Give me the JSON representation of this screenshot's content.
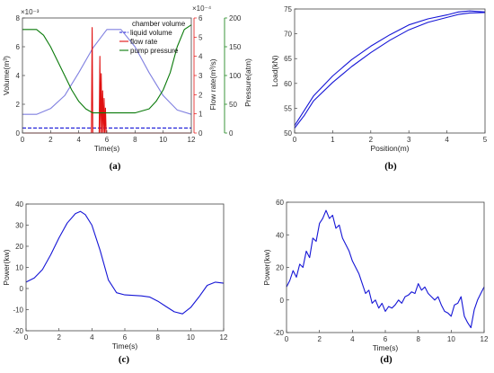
{
  "colors": {
    "blue": "#1515d6",
    "light_blue": "#8080e0",
    "red": "#e01010",
    "green": "#0a7a0a",
    "axis": "#444444"
  },
  "chart_data": [
    {
      "id": "a",
      "type": "line",
      "caption": "(a)",
      "xlabel": "Time(s)",
      "xticks": [
        "0",
        "2",
        "4",
        "6",
        "8",
        "10",
        "12"
      ],
      "xlim": [
        0,
        12
      ],
      "axes": {
        "volume": {
          "label": "Volume(m³)",
          "exponent": "×10⁻³",
          "ticks": [
            "0",
            "2",
            "4",
            "6",
            "8"
          ],
          "lim": [
            0,
            8
          ],
          "color": "#1515d6"
        },
        "flow": {
          "label": "Flow rate(m³/s)",
          "exponent": "×10⁻⁴",
          "ticks": [
            "0",
            "1",
            "2",
            "3",
            "4",
            "5",
            "6"
          ],
          "lim": [
            0,
            6
          ],
          "color": "#e01010"
        },
        "pressure": {
          "label": "Pressure(atm)",
          "ticks": [
            "0",
            "50",
            "100",
            "150",
            "200"
          ],
          "lim": [
            0,
            200
          ],
          "color": "#0a7a0a"
        }
      },
      "legend": [
        "chamber volume",
        "liquid volume",
        "flow rate",
        "pump pressure"
      ],
      "series": [
        {
          "name": "chamber volume",
          "axis": "volume",
          "color": "#8080e0",
          "x": [
            0,
            1,
            2,
            3,
            4,
            5,
            6,
            7,
            8,
            9,
            10,
            11,
            12
          ],
          "y": [
            1.3,
            1.3,
            1.7,
            2.6,
            4.2,
            5.9,
            7.2,
            7.2,
            6.0,
            4.2,
            2.6,
            1.6,
            1.3
          ]
        },
        {
          "name": "liquid volume",
          "axis": "volume",
          "color": "#1515d6",
          "dashed": true,
          "x": [
            0,
            12
          ],
          "y": [
            0.35,
            0.35
          ]
        },
        {
          "name": "flow rate",
          "axis": "flow",
          "color": "#e01010",
          "x": [
            0,
            4.9,
            4.95,
            5.0,
            5.05,
            5.1,
            5.45,
            5.5,
            5.55,
            5.6,
            5.65,
            5.7,
            5.75,
            5.8,
            5.85,
            5.9,
            5.95,
            6.0,
            12
          ],
          "y": [
            0,
            0,
            5.5,
            0,
            0,
            0,
            0,
            4.0,
            0,
            3.1,
            0,
            2.2,
            0,
            1.8,
            0,
            1.3,
            0,
            0,
            0
          ]
        },
        {
          "name": "pump pressure",
          "axis": "pressure",
          "color": "#0a7a0a",
          "x": [
            0,
            1,
            1.5,
            2,
            3,
            3.5,
            4,
            4.5,
            5,
            6,
            7,
            8,
            9,
            9.5,
            10,
            10.5,
            11,
            11.5,
            12
          ],
          "y": [
            180,
            180,
            170,
            150,
            100,
            75,
            55,
            42,
            35,
            35,
            35,
            35,
            42,
            55,
            75,
            105,
            150,
            180,
            188
          ]
        }
      ]
    },
    {
      "id": "b",
      "type": "line",
      "caption": "(b)",
      "xlabel": "Position(m)",
      "ylabel": "Load(kN)",
      "xticks": [
        "0",
        "1",
        "2",
        "3",
        "4",
        "5"
      ],
      "yticks": [
        "50",
        "55",
        "60",
        "65",
        "70",
        "75"
      ],
      "xlim": [
        0,
        5
      ],
      "ylim": [
        50,
        75
      ],
      "series": [
        {
          "color": "#1515d6",
          "x": [
            0,
            0.25,
            0.5,
            1,
            1.5,
            2,
            2.5,
            3,
            3.5,
            4,
            4.3,
            4.6,
            5
          ],
          "y": [
            51.5,
            54.5,
            57.5,
            61.5,
            64.8,
            67.5,
            69.8,
            71.8,
            73.0,
            73.8,
            74.4,
            74.6,
            74.4
          ]
        },
        {
          "color": "#1515d6",
          "x": [
            0,
            0.25,
            0.5,
            1,
            1.5,
            2,
            2.5,
            3,
            3.5,
            4,
            4.3,
            4.6,
            5
          ],
          "y": [
            51.0,
            53.5,
            56.5,
            60.2,
            63.4,
            66.2,
            68.7,
            70.8,
            72.3,
            73.3,
            73.9,
            74.2,
            74.3
          ]
        }
      ]
    },
    {
      "id": "c",
      "type": "line",
      "caption": "(c)",
      "xlabel": "Time(s)",
      "ylabel": "Power(kw)",
      "xticks": [
        "0",
        "2",
        "4",
        "6",
        "8",
        "10",
        "12"
      ],
      "yticks": [
        "-20",
        "-10",
        "0",
        "10",
        "20",
        "30",
        "40"
      ],
      "xlim": [
        0,
        12
      ],
      "ylim": [
        -20,
        40
      ],
      "series": [
        {
          "color": "#1515d6",
          "x": [
            0,
            0.5,
            1,
            1.5,
            2,
            2.5,
            3,
            3.3,
            3.6,
            4,
            4.5,
            5,
            5.5,
            6,
            7,
            7.5,
            8,
            8.5,
            9,
            9.5,
            10,
            10.5,
            11,
            11.5,
            12
          ],
          "y": [
            3,
            5,
            9,
            16,
            24,
            31,
            35.5,
            36.5,
            35,
            30,
            18,
            4,
            -2,
            -3,
            -3.5,
            -4,
            -6,
            -8.5,
            -11,
            -12,
            -9,
            -4,
            1.5,
            3,
            2.5
          ]
        }
      ]
    },
    {
      "id": "d",
      "type": "line",
      "caption": "(d)",
      "xlabel": "Time(s)",
      "ylabel": "Power(kw)",
      "xticks": [
        "0",
        "2",
        "4",
        "6",
        "8",
        "10",
        "12"
      ],
      "yticks": [
        "-20",
        "0",
        "20",
        "40",
        "60"
      ],
      "xlim": [
        0,
        12
      ],
      "ylim": [
        -20,
        60
      ],
      "series": [
        {
          "color": "#1515d6",
          "x": [
            0,
            0.2,
            0.4,
            0.6,
            0.8,
            1.0,
            1.2,
            1.4,
            1.6,
            1.8,
            2.0,
            2.2,
            2.4,
            2.6,
            2.8,
            3.0,
            3.2,
            3.4,
            3.6,
            3.8,
            4.0,
            4.2,
            4.4,
            4.6,
            4.8,
            5.0,
            5.2,
            5.4,
            5.6,
            5.8,
            6.0,
            6.2,
            6.4,
            6.6,
            6.8,
            7.0,
            7.2,
            7.4,
            7.6,
            7.8,
            8.0,
            8.2,
            8.4,
            8.6,
            8.8,
            9.0,
            9.2,
            9.4,
            9.6,
            9.8,
            10.0,
            10.2,
            10.4,
            10.6,
            10.8,
            11.0,
            11.2,
            11.4,
            11.6,
            11.8,
            12.0
          ],
          "y": [
            8,
            12,
            18,
            14,
            22,
            20,
            30,
            26,
            38,
            36,
            47,
            50,
            55,
            50,
            52,
            44,
            46,
            38,
            34,
            30,
            24,
            20,
            16,
            10,
            4,
            6,
            -2,
            0,
            -5,
            -2,
            -7,
            -4,
            -5,
            -3,
            0,
            -2,
            2,
            3,
            5,
            4,
            10,
            6,
            8,
            4,
            2,
            0,
            2,
            -3,
            -7,
            -8,
            -10,
            -3,
            -2,
            2,
            -10,
            -14,
            -17,
            -6,
            0,
            4,
            8
          ]
        }
      ]
    }
  ]
}
